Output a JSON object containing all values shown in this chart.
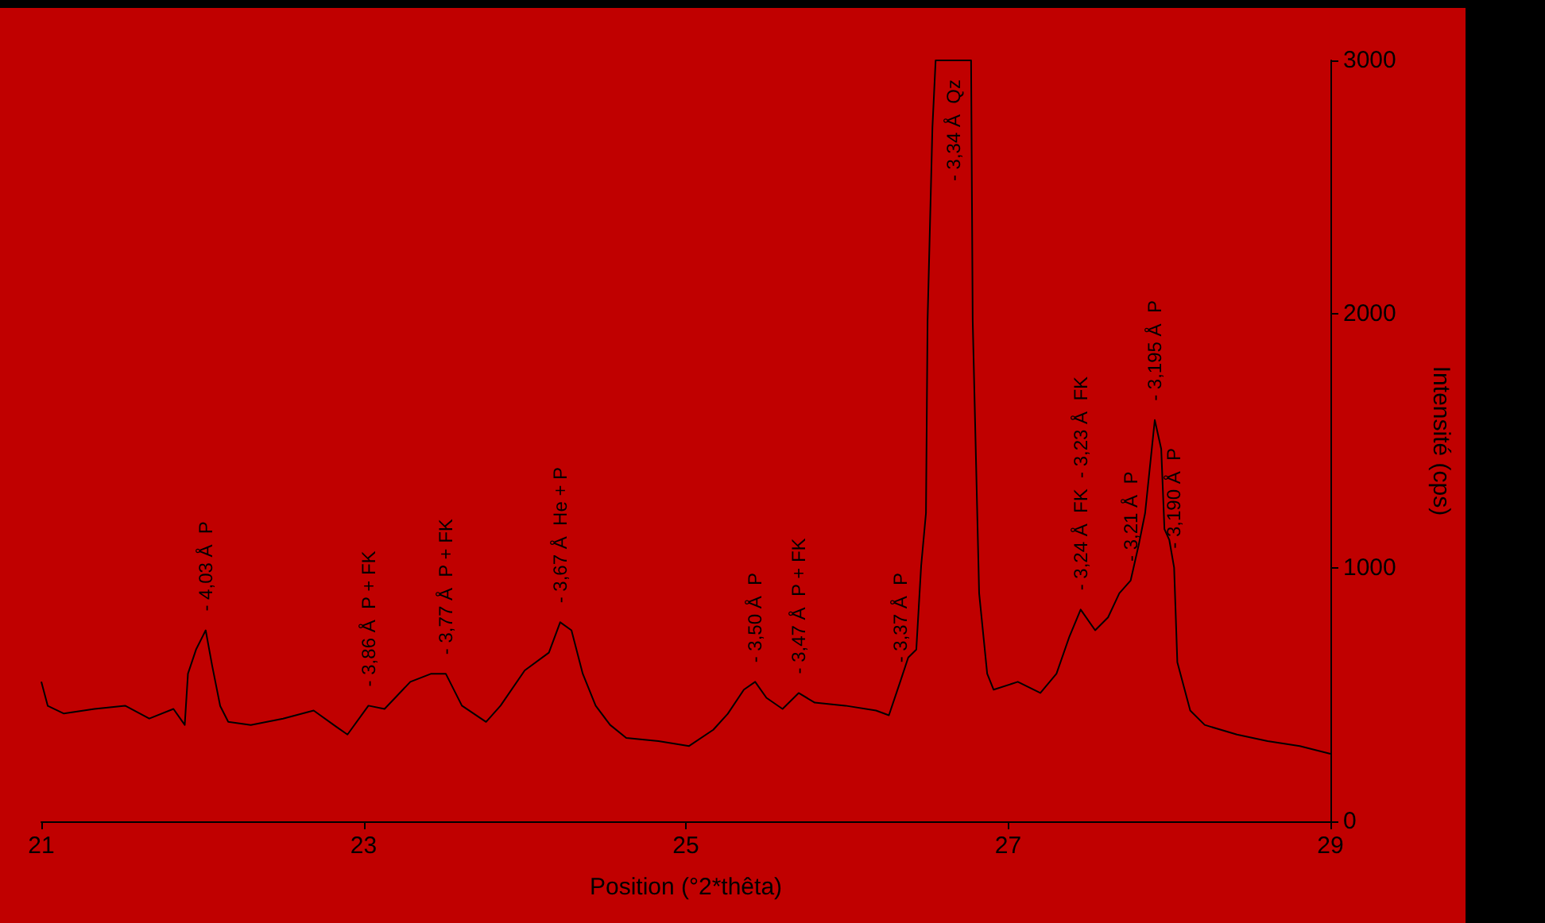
{
  "chart_data": {
    "type": "line",
    "xlabel": "Position (°2*thêta)",
    "ylabel": "Intensité (cps)",
    "xlim": [
      21,
      29
    ],
    "xticks": [
      21,
      23,
      25,
      27,
      29
    ],
    "ylim": [
      0,
      3000
    ],
    "yticks": [
      0,
      1000,
      2000,
      3000
    ],
    "grid": false,
    "marker": "none",
    "line_style": "solid",
    "series": [
      {
        "color": "#000000",
        "x": [
          21.0,
          21.04,
          21.14,
          21.33,
          21.52,
          21.67,
          21.82,
          21.89,
          21.91,
          21.96,
          22.02,
          22.06,
          22.11,
          22.16,
          22.3,
          22.5,
          22.69,
          22.83,
          22.9,
          23.03,
          23.13,
          23.29,
          23.42,
          23.51,
          23.61,
          23.76,
          23.85,
          24.0,
          24.15,
          24.22,
          24.29,
          24.36,
          24.44,
          24.53,
          24.63,
          24.83,
          25.02,
          25.17,
          25.26,
          25.36,
          25.43,
          25.5,
          25.6,
          25.7,
          25.8,
          25.99,
          26.18,
          26.26,
          26.33,
          26.38,
          26.43,
          26.46,
          26.49,
          26.5,
          26.53,
          26.55,
          26.77,
          26.78,
          26.82,
          26.87,
          26.91,
          27.06,
          27.2,
          27.3,
          27.38,
          27.45,
          27.54,
          27.62,
          27.69,
          27.76,
          27.81,
          27.85,
          27.91,
          27.95,
          27.97,
          28.0,
          28.03,
          28.05,
          28.13,
          28.22,
          28.42,
          28.61,
          28.81,
          29.0
        ],
        "values": [
          550,
          455,
          425,
          443,
          456,
          405,
          443,
          380,
          582,
          677,
          753,
          614,
          455,
          392,
          380,
          405,
          437,
          373,
          342,
          456,
          443,
          550,
          582,
          582,
          456,
          392,
          456,
          595,
          665,
          785,
          753,
          582,
          456,
          380,
          329,
          316,
          297,
          361,
          424,
          519,
          550,
          487,
          443,
          506,
          468,
          456,
          437,
          418,
          550,
          646,
          677,
          1006,
          1215,
          1975,
          2734,
          3000,
          3000,
          1975,
          899,
          582,
          519,
          550,
          506,
          582,
          728,
          835,
          753,
          804,
          899,
          949,
          1089,
          1215,
          1582,
          1468,
          1152,
          1110,
          1000,
          627,
          437,
          380,
          342,
          316,
          297,
          266
        ]
      }
    ],
    "annotations": [
      {
        "text": "- 4,03 Å  P",
        "x": 22.02,
        "y": 753
      },
      {
        "text": "- 3,86 Å  P + FK",
        "x": 23.03,
        "y": 456
      },
      {
        "text": "- 3,77 Å  P + FK",
        "x": 23.51,
        "y": 582
      },
      {
        "text": "- 3,67 Å  He + P",
        "x": 24.22,
        "y": 785
      },
      {
        "text": "- 3,50 Å  P",
        "x": 25.43,
        "y": 550
      },
      {
        "text": "- 3,47 Å  P + FK",
        "x": 25.7,
        "y": 506
      },
      {
        "text": "- 3,37 Å  P",
        "x": 26.33,
        "y": 550
      },
      {
        "text": "- 3,34 Å  Qz",
        "x": 26.66,
        "y": 3000
      },
      {
        "text": "- 3,24 Å  FK  - 3,23 Å  FK",
        "x": 27.45,
        "y": 835
      },
      {
        "text": "- 3,21 Å  P",
        "x": 27.76,
        "y": 949
      },
      {
        "text": "- 3,195 Å  P",
        "x": 27.91,
        "y": 1582
      },
      {
        "text": "- 3,190 Å  P",
        "x": 28.03,
        "y": 1000
      }
    ]
  }
}
